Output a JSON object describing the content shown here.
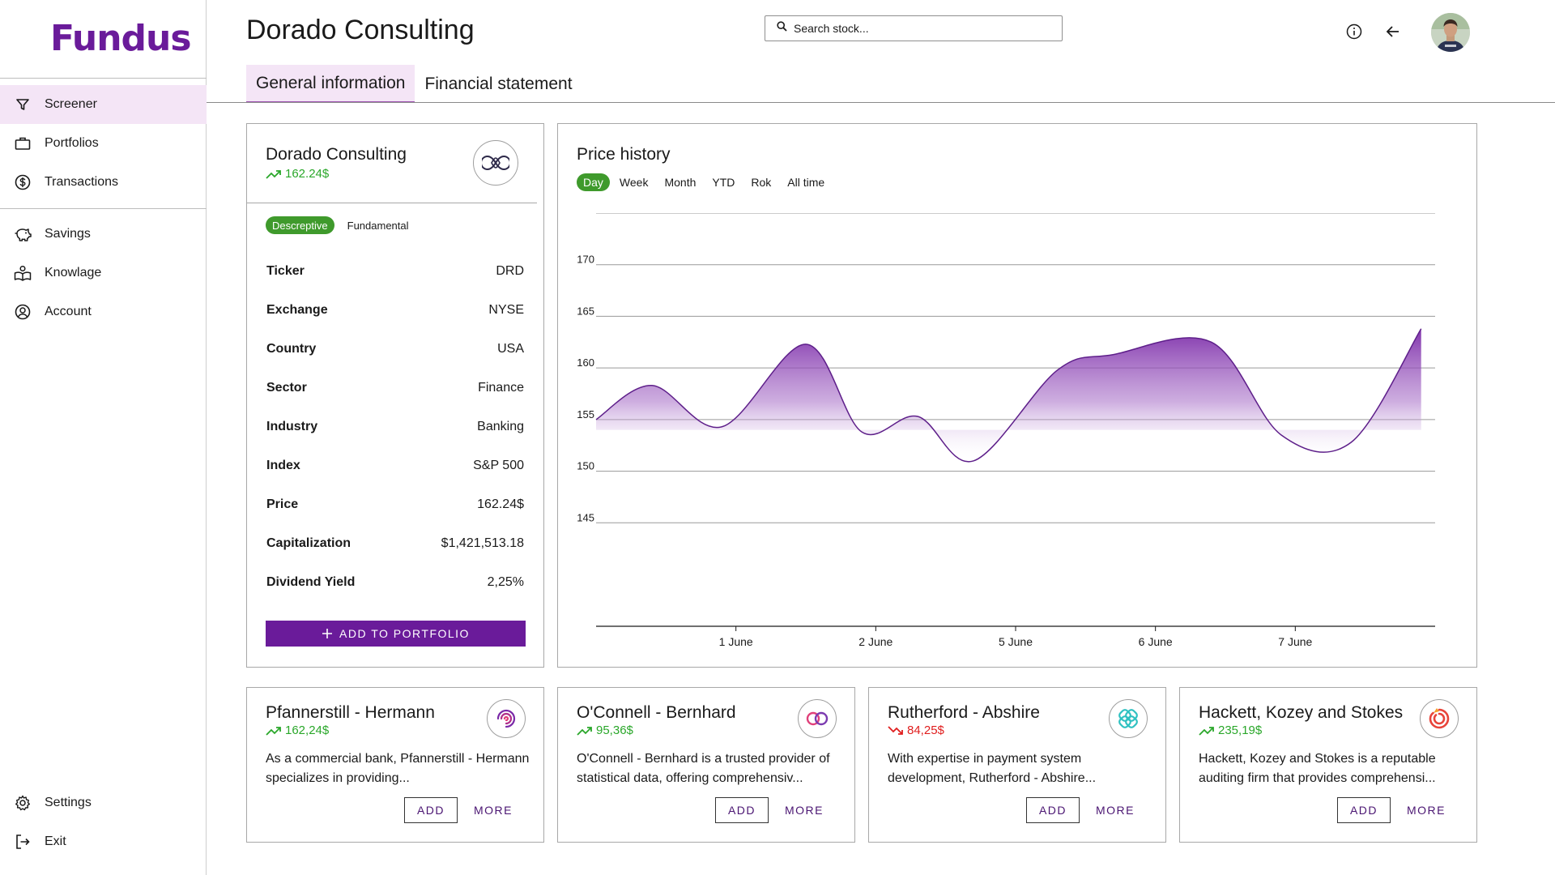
{
  "app": {
    "logo": "Fundus"
  },
  "sidebar": {
    "items": [
      {
        "label": "Screener",
        "icon": "filter-icon"
      },
      {
        "label": "Portfolios",
        "icon": "briefcase-icon"
      },
      {
        "label": "Transactions",
        "icon": "dollar-circle-icon"
      },
      {
        "label": "Savings",
        "icon": "piggy-bank-icon"
      },
      {
        "label": "Knowlage",
        "icon": "book-icon"
      },
      {
        "label": "Account",
        "icon": "user-circle-icon"
      }
    ],
    "bottom": [
      {
        "label": "Settings",
        "icon": "gear-icon"
      },
      {
        "label": "Exit",
        "icon": "logout-icon"
      }
    ]
  },
  "header": {
    "title": "Dorado Consulting",
    "search_placeholder": "Search stock..."
  },
  "tabs": [
    {
      "label": "General information"
    },
    {
      "label": "Financial statement"
    }
  ],
  "company": {
    "name": "Dorado Consulting",
    "price": "162.24$",
    "subtabs": [
      "Descreptive",
      "Fundamental"
    ],
    "rows": [
      {
        "key": "Ticker",
        "value": "DRD"
      },
      {
        "key": "Exchange",
        "value": "NYSE"
      },
      {
        "key": "Country",
        "value": "USA"
      },
      {
        "key": "Sector",
        "value": "Finance"
      },
      {
        "key": "Industry",
        "value": "Banking"
      },
      {
        "key": "Index",
        "value": "S&P 500"
      },
      {
        "key": "Price",
        "value": "162.24$"
      },
      {
        "key": "Capitalization",
        "value": "$1,421,513.18"
      },
      {
        "key": "Dividend Yield",
        "value": "2,25%"
      }
    ],
    "add_button": "ADD TO PORTFOLIO"
  },
  "price_history": {
    "title": "Price history",
    "periods": [
      "Day",
      "Week",
      "Month",
      "YTD",
      "Rok",
      "All time"
    ]
  },
  "chart_data": {
    "type": "area",
    "title": "Price history",
    "xlabel": "",
    "ylabel": "",
    "ylim": [
      140,
      175
    ],
    "yticks": [
      145,
      150,
      155,
      160,
      165,
      170,
      175
    ],
    "xlim": [
      0,
      6
    ],
    "xticks": [
      {
        "x": 1,
        "label": "1 June"
      },
      {
        "x": 2,
        "label": "2 June"
      },
      {
        "x": 3,
        "label": "5 June"
      },
      {
        "x": 4,
        "label": "6 June"
      },
      {
        "x": 5,
        "label": "7 June"
      }
    ],
    "x": [
      0,
      0.4,
      0.9,
      1.5,
      1.9,
      2.3,
      2.7,
      3.3,
      3.7,
      4.4,
      4.9,
      5.4,
      5.9
    ],
    "values": [
      155,
      158.3,
      154.3,
      162.3,
      153.8,
      155.3,
      151.0,
      159.8,
      161.3,
      162.5,
      153.5,
      152.8,
      163.8
    ],
    "grid": true
  },
  "related": [
    {
      "name": "Pfannerstill - Hermann",
      "price": "162,24$",
      "trend": "up",
      "description": "As a commercial bank, Pfannerstill - Hermann specializes in providing...",
      "add": "ADD",
      "more": "MORE",
      "logo": "spiral-logo-icon"
    },
    {
      "name": "O'Connell - Bernhard",
      "price": "95,36$",
      "trend": "up",
      "description": "O'Connell - Bernhard is a trusted provider of statistical data, offering comprehensiv...",
      "add": "ADD",
      "more": "MORE",
      "logo": "rings-logo-icon"
    },
    {
      "name": "Rutherford - Abshire",
      "price": "84,25$",
      "trend": "down",
      "description": "With expertise in payment system development, Rutherford - Abshire...",
      "add": "ADD",
      "more": "MORE",
      "logo": "knot-logo-icon"
    },
    {
      "name": "Hackett, Kozey and Stokes",
      "price": "235,19$",
      "trend": "up",
      "description": "Hackett, Kozey and Stokes is a reputable auditing firm that provides comprehensi...",
      "add": "ADD",
      "more": "MORE",
      "logo": "swirl-logo-icon"
    }
  ],
  "colors": {
    "brand": "#6a1b9a",
    "active_bg": "#f4e5f6",
    "positive": "#2aa72a",
    "negative": "#e01e1e",
    "pill": "#3f9a2c"
  }
}
